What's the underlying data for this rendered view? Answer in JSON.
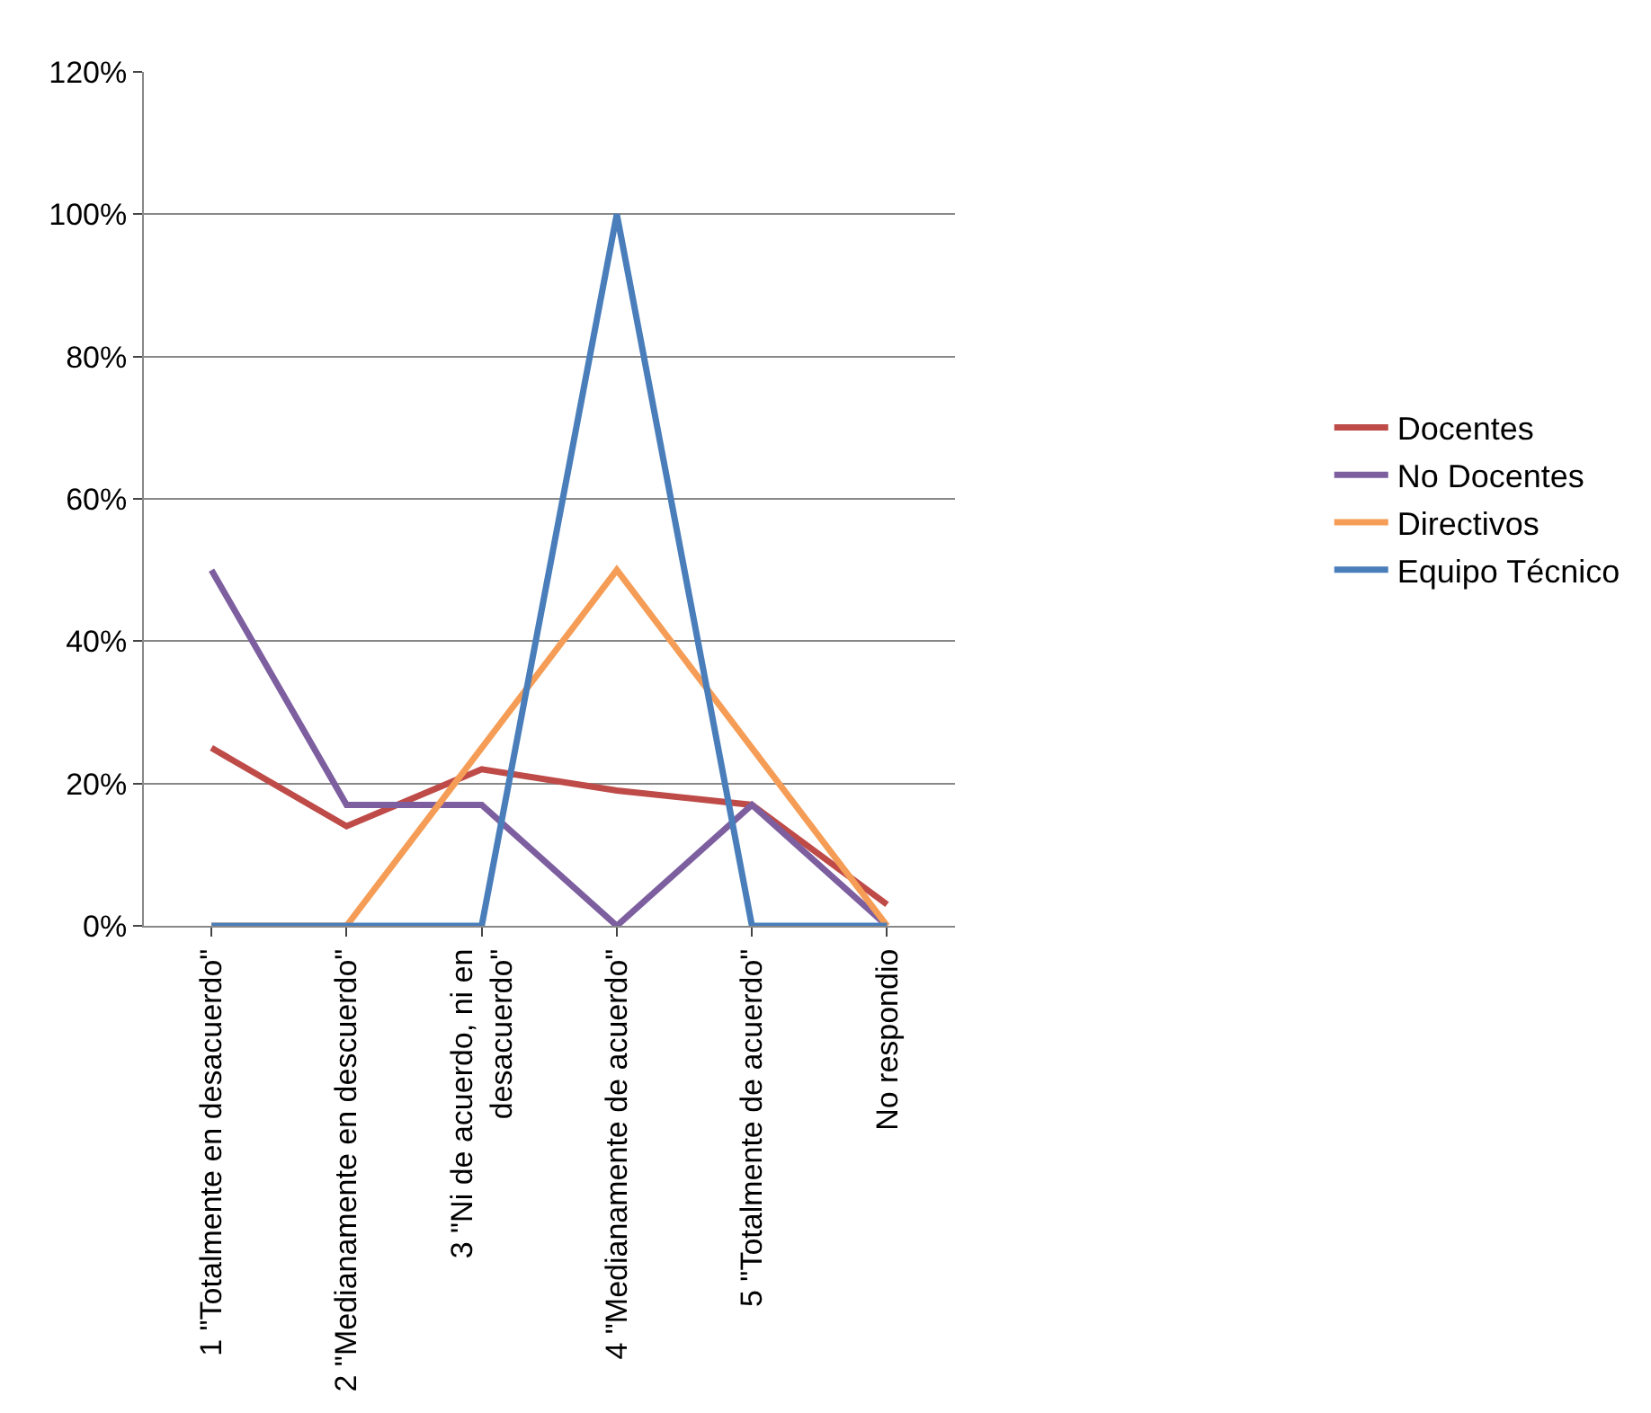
{
  "chart_data": {
    "type": "line",
    "categories": [
      "1 \"Totalmente en desacuerdo\"",
      "2 \"Medianamente en descuerdo\"",
      "3 \"Ni de acuerdo, ni en desacuerdo\"",
      "4 \"Medianamente de acuerdo\"",
      "5 \"Totalmente de acuerdo\"",
      "No respondio"
    ],
    "series": [
      {
        "name": "Docentes",
        "color": "#be4b48",
        "values": [
          25,
          14,
          22,
          19,
          17,
          3
        ]
      },
      {
        "name": "No Docentes",
        "color": "#7d5fa0",
        "values": [
          50,
          17,
          17,
          0,
          17,
          0
        ]
      },
      {
        "name": "Directivos",
        "color": "#f59d56",
        "values": [
          0,
          0,
          25,
          50,
          25,
          0
        ]
      },
      {
        "name": "Equipo Técnico",
        "color": "#4a7ebb",
        "values": [
          0,
          0,
          0,
          100,
          0,
          0
        ]
      }
    ],
    "ylim": [
      0,
      120
    ],
    "yticks": [
      {
        "value": 0,
        "label": "0%"
      },
      {
        "value": 20,
        "label": "20%"
      },
      {
        "value": 40,
        "label": "40%"
      },
      {
        "value": 60,
        "label": "60%"
      },
      {
        "value": 80,
        "label": "80%"
      },
      {
        "value": 100,
        "label": "100%"
      },
      {
        "value": 120,
        "label": "120%"
      }
    ],
    "grid": "y",
    "legend": "right",
    "marker": "none",
    "line_style": "solid"
  }
}
